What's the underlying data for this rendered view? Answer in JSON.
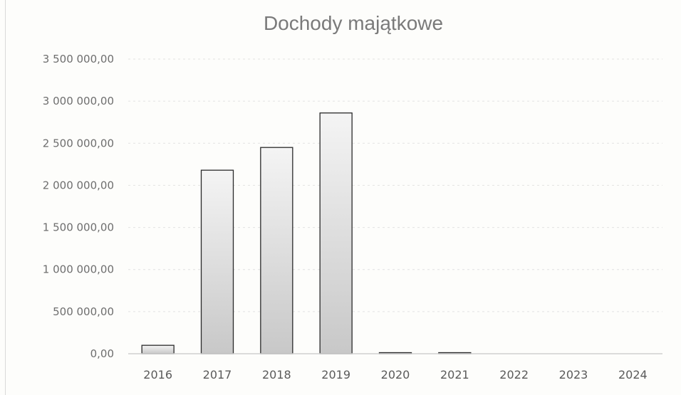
{
  "chart_data": {
    "type": "bar",
    "title": "Dochody majątkowe",
    "xlabel": "",
    "ylabel": "",
    "categories": [
      "2016",
      "2017",
      "2018",
      "2019",
      "2020",
      "2021",
      "2022",
      "2023",
      "2024"
    ],
    "values": [
      100000,
      2180000,
      2450000,
      2860000,
      10000,
      10000,
      0,
      0,
      0
    ],
    "ylim": [
      0,
      3500000
    ],
    "yticks": [
      0,
      500000,
      1000000,
      1500000,
      2000000,
      2500000,
      3000000,
      3500000
    ],
    "ytick_labels": [
      "0,00",
      "500 000,00",
      "1 000 000,00",
      "1 500 000,00",
      "2 000 000,00",
      "2 500 000,00",
      "3 000 000,00",
      "3 500 000,00"
    ],
    "grid": true,
    "legend": "none",
    "bar_fill_top": "#f4f4f4",
    "bar_fill_bottom": "#c8c8c8",
    "bar_outline": "#2a2a2a"
  }
}
